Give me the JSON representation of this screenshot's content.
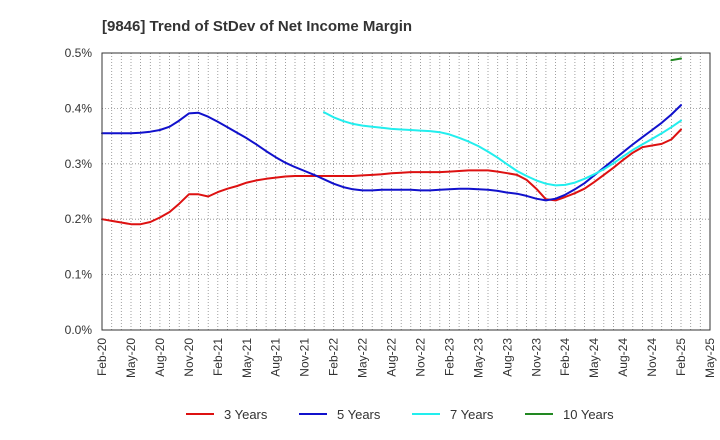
{
  "chart_data": {
    "type": "line",
    "title": "[9846]  Trend of StDev of Net Income Margin",
    "xlabel": "",
    "ylabel": "",
    "x": [
      "Feb-20",
      "Mar-20",
      "Apr-20",
      "May-20",
      "Jun-20",
      "Jul-20",
      "Aug-20",
      "Sep-20",
      "Oct-20",
      "Nov-20",
      "Dec-20",
      "Jan-21",
      "Feb-21",
      "Mar-21",
      "Apr-21",
      "May-21",
      "Jun-21",
      "Jul-21",
      "Aug-21",
      "Sep-21",
      "Oct-21",
      "Nov-21",
      "Dec-21",
      "Jan-22",
      "Feb-22",
      "Mar-22",
      "Apr-22",
      "May-22",
      "Jun-22",
      "Jul-22",
      "Aug-22",
      "Sep-22",
      "Oct-22",
      "Nov-22",
      "Dec-22",
      "Jan-23",
      "Feb-23",
      "Mar-23",
      "Apr-23",
      "May-23",
      "Jun-23",
      "Jul-23",
      "Aug-23",
      "Sep-23",
      "Oct-23",
      "Nov-23",
      "Dec-23",
      "Jan-24",
      "Feb-24",
      "Mar-24",
      "Apr-24",
      "May-24",
      "Jun-24",
      "Jul-24",
      "Aug-24",
      "Sep-24",
      "Oct-24",
      "Nov-24",
      "Dec-24",
      "Jan-25",
      "Feb-25"
    ],
    "x_ticks": [
      "Feb-20",
      "May-20",
      "Aug-20",
      "Nov-20",
      "Feb-21",
      "May-21",
      "Aug-21",
      "Nov-21",
      "Feb-22",
      "May-22",
      "Aug-22",
      "Nov-22",
      "Feb-23",
      "May-23",
      "Aug-23",
      "Nov-23",
      "Feb-24",
      "May-24",
      "Aug-24",
      "Nov-24",
      "Feb-25",
      "May-25"
    ],
    "x_tick_months": [
      0,
      3,
      6,
      9,
      12,
      15,
      18,
      21,
      24,
      27,
      30,
      33,
      36,
      39,
      42,
      45,
      48,
      51,
      54,
      57,
      60,
      63
    ],
    "y_ticks": [
      "0.0%",
      "0.1%",
      "0.2%",
      "0.3%",
      "0.4%",
      "0.5%"
    ],
    "ylim": [
      0,
      0.5
    ],
    "grid": true,
    "legend_position": "bottom",
    "series": [
      {
        "name": "3 Years",
        "color": "#dd1111",
        "values": [
          0.2,
          0.197,
          0.194,
          0.191,
          0.191,
          0.195,
          0.203,
          0.213,
          0.228,
          0.245,
          0.245,
          0.241,
          0.249,
          0.255,
          0.26,
          0.266,
          0.27,
          0.273,
          0.275,
          0.277,
          0.278,
          0.278,
          0.278,
          0.278,
          0.278,
          0.278,
          0.278,
          0.279,
          0.28,
          0.281,
          0.283,
          0.284,
          0.285,
          0.285,
          0.285,
          0.285,
          0.286,
          0.287,
          0.288,
          0.288,
          0.288,
          0.286,
          0.283,
          0.28,
          0.271,
          0.255,
          0.236,
          0.234,
          0.24,
          0.247,
          0.255,
          0.267,
          0.28,
          0.293,
          0.307,
          0.32,
          0.33,
          0.333,
          0.336,
          0.344,
          0.362
        ]
      },
      {
        "name": "5 Years",
        "color": "#1111cc",
        "values": [
          0.355,
          0.355,
          0.355,
          0.355,
          0.356,
          0.358,
          0.361,
          0.367,
          0.378,
          0.391,
          0.392,
          0.385,
          0.376,
          0.366,
          0.356,
          0.346,
          0.335,
          0.323,
          0.312,
          0.302,
          0.294,
          0.287,
          0.28,
          0.272,
          0.264,
          0.258,
          0.254,
          0.252,
          0.252,
          0.253,
          0.253,
          0.253,
          0.253,
          0.252,
          0.252,
          0.253,
          0.254,
          0.255,
          0.255,
          0.254,
          0.253,
          0.251,
          0.248,
          0.246,
          0.242,
          0.237,
          0.234,
          0.237,
          0.244,
          0.254,
          0.265,
          0.279,
          0.293,
          0.307,
          0.321,
          0.335,
          0.348,
          0.361,
          0.374,
          0.389,
          0.406
        ]
      },
      {
        "name": "7 Years",
        "color": "#22eeee",
        "values": [
          null,
          null,
          null,
          null,
          null,
          null,
          null,
          null,
          null,
          null,
          null,
          null,
          null,
          null,
          null,
          null,
          null,
          null,
          null,
          null,
          null,
          null,
          null,
          0.393,
          0.384,
          0.377,
          0.372,
          0.369,
          0.367,
          0.365,
          0.363,
          0.362,
          0.361,
          0.36,
          0.359,
          0.357,
          0.353,
          0.347,
          0.34,
          0.332,
          0.322,
          0.311,
          0.299,
          0.287,
          0.278,
          0.27,
          0.264,
          0.261,
          0.262,
          0.266,
          0.273,
          0.281,
          0.29,
          0.301,
          0.313,
          0.325,
          0.335,
          0.345,
          0.355,
          0.366,
          0.378
        ]
      },
      {
        "name": "10 Years",
        "color": "#228822",
        "values": [
          null,
          null,
          null,
          null,
          null,
          null,
          null,
          null,
          null,
          null,
          null,
          null,
          null,
          null,
          null,
          null,
          null,
          null,
          null,
          null,
          null,
          null,
          null,
          null,
          null,
          null,
          null,
          null,
          null,
          null,
          null,
          null,
          null,
          null,
          null,
          null,
          null,
          null,
          null,
          null,
          null,
          null,
          null,
          null,
          null,
          null,
          null,
          null,
          null,
          null,
          null,
          null,
          null,
          null,
          null,
          null,
          null,
          null,
          null,
          0.487,
          0.49
        ]
      }
    ]
  }
}
